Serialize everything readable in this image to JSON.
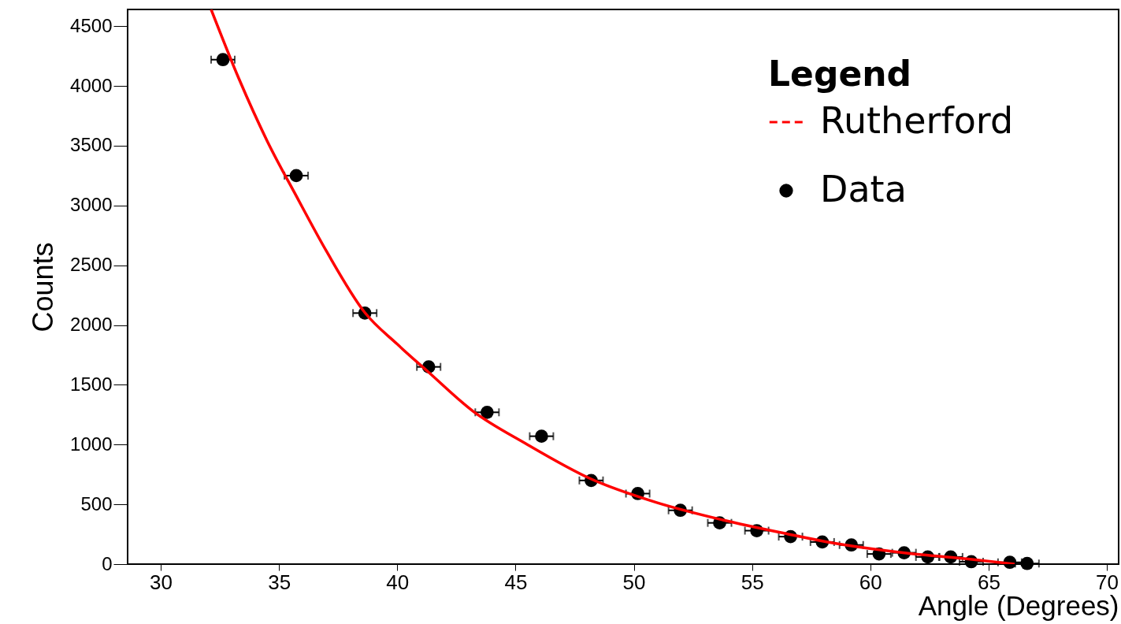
{
  "chart_data": {
    "type": "scatter",
    "xlabel": "Angle (Degrees)",
    "ylabel": "Counts",
    "legend_title": "Legend",
    "legend": "top right",
    "grid": false,
    "xlim": [
      28.6,
      70.5
    ],
    "ylim": [
      0,
      4640
    ],
    "xticks": [
      30,
      35,
      40,
      45,
      50,
      55,
      60,
      65,
      70
    ],
    "yticks": [
      0,
      500,
      1000,
      1500,
      2000,
      2500,
      3000,
      3500,
      4000,
      4500
    ],
    "series": [
      {
        "name": "Rutherford",
        "type": "line",
        "color": "#ff0000",
        "line_style": "solid",
        "marker": "none",
        "x": [
          32.13,
          33.3,
          34.5,
          35.73,
          37.0,
          38.63,
          40.0,
          41.3,
          43.2,
          45.43,
          48.2,
          50.97,
          53.77,
          56.53,
          58.2,
          61.53,
          64.3,
          66.1
        ],
        "values": [
          4640,
          4063,
          3540,
          3080,
          2620,
          2104,
          1840,
          1610,
          1280,
          1009,
          712,
          515,
          369,
          251,
          185,
          92,
          40,
          0
        ]
      },
      {
        "name": "Data",
        "type": "scatter",
        "color": "#000000",
        "marker": "circle",
        "x": [
          32.63,
          35.73,
          38.63,
          41.33,
          43.8,
          46.1,
          48.2,
          50.17,
          51.97,
          53.63,
          55.2,
          56.63,
          57.97,
          59.2,
          60.37,
          61.43,
          62.43,
          63.4,
          64.27,
          65.9,
          66.63
        ],
        "values": [
          4220,
          3250,
          2100,
          1650,
          1270,
          1070,
          700,
          590,
          450,
          345,
          280,
          230,
          185,
          160,
          85,
          95,
          60,
          60,
          20,
          15,
          5
        ],
        "xerrors": [
          0.5,
          0.5,
          0.5,
          0.5,
          0.5,
          0.5,
          0.5,
          0.5,
          0.5,
          0.5,
          0.5,
          0.5,
          0.5,
          0.5,
          0.5,
          0.5,
          0.5,
          0.5,
          0.5,
          0.5,
          0.5
        ]
      }
    ]
  }
}
